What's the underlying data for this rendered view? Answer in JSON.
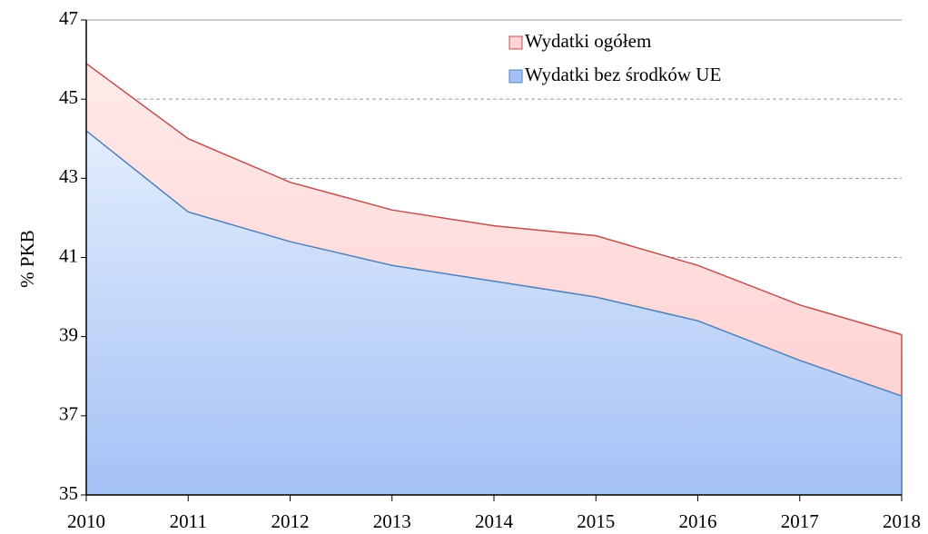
{
  "chart_data": {
    "type": "area",
    "y_label": "% PKB",
    "x": [
      2010,
      2011,
      2012,
      2013,
      2014,
      2015,
      2016,
      2017,
      2018
    ],
    "xlim": [
      2010,
      2018
    ],
    "xticks": [
      2010,
      2011,
      2012,
      2013,
      2014,
      2015,
      2016,
      2017,
      2018
    ],
    "ylim": [
      35,
      47
    ],
    "yticks": [
      35,
      37,
      39,
      41,
      43,
      45,
      47
    ],
    "grid": true,
    "legend": "top-right",
    "series": [
      {
        "name": "Wydatki ogółem",
        "color": "#c0504d",
        "fill": "#ffd4d4",
        "values": [
          45.9,
          44.0,
          42.9,
          42.2,
          41.8,
          41.55,
          40.8,
          39.8,
          39.05
        ]
      },
      {
        "name": "Wydatki  bez środków UE",
        "color": "#4f81bd",
        "fill": "#a4c1f6",
        "values": [
          44.2,
          42.15,
          41.4,
          40.8,
          40.4,
          40.0,
          39.4,
          38.4,
          37.5
        ]
      }
    ]
  }
}
